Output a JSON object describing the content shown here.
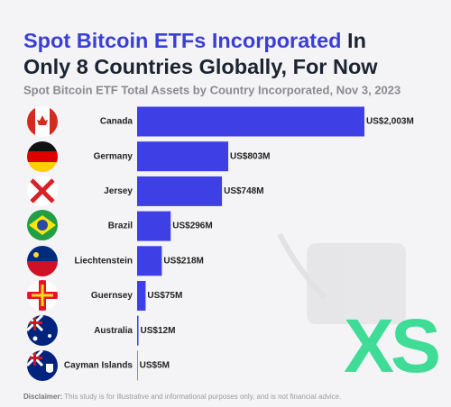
{
  "chart_data": {
    "type": "bar",
    "orientation": "horizontal",
    "title": [
      "Spot Bitcoin ETFs Incorporated",
      "In",
      "Only 8 Countries Globally, For Now"
    ],
    "subtitle": "Spot Bitcoin ETF Total Assets by Country Incorporated, Nov 3, 2023",
    "categories": [
      "Canada",
      "Germany",
      "Jersey",
      "Brazil",
      "Liechtenstein",
      "Guernsey",
      "Australia",
      "Cayman Islands"
    ],
    "values": [
      2003,
      803,
      748,
      296,
      218,
      75,
      12,
      5
    ],
    "value_labels": [
      "US$2,003M",
      "US$803M",
      "US$748M",
      "US$296M",
      "US$218M",
      "US$75M",
      "US$12M",
      "US$5M"
    ],
    "color": "#3f3fe6",
    "disclaimer": {
      "label": "Disclaimer:",
      "text": "This study is for illustrative and informational purposes only, and is not financial advice."
    },
    "logo": "XS"
  }
}
